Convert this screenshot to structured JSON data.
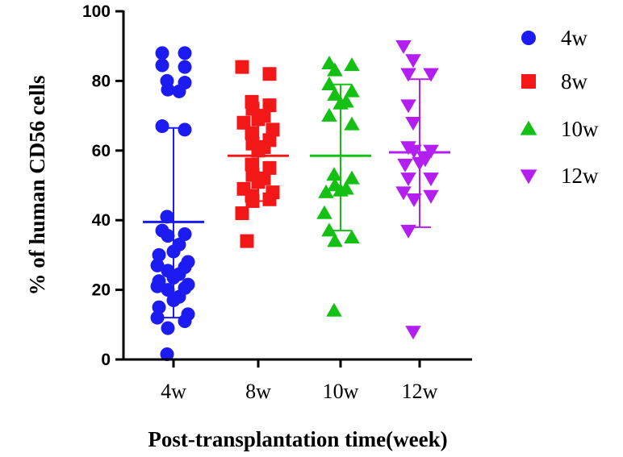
{
  "chart_data": {
    "type": "scatter",
    "title": "",
    "xlabel": "Post-transplantation time(week)",
    "ylabel": "% of human CD56 cells",
    "ylim": [
      0,
      100
    ],
    "yticks": [
      "0",
      "20",
      "40",
      "60",
      "80",
      "100"
    ],
    "categories": [
      "4w",
      "8w",
      "10w",
      "12w"
    ],
    "legend_position": "top-right",
    "series": [
      {
        "name": "4w",
        "marker": "circle",
        "color": "#1b1bf2",
        "mean": 39.5,
        "sd_low": 12,
        "sd_high": 66.5,
        "values": [
          88,
          88,
          84.5,
          84,
          80,
          79.5,
          77.5,
          77,
          67,
          66,
          41,
          37,
          36,
          35.5,
          33,
          31,
          30,
          28,
          27,
          26.5,
          25.5,
          24.5,
          23.5,
          22.5,
          21.5,
          21,
          20.5,
          20,
          18,
          17,
          15,
          13,
          12,
          11,
          9,
          1.5
        ]
      },
      {
        "name": "8w",
        "marker": "square",
        "color": "#f21818",
        "mean": 58.5,
        "sd_low": 45.5,
        "sd_high": 71.5,
        "values": [
          84,
          82,
          74,
          73,
          72,
          70,
          69,
          68,
          66,
          65,
          63,
          62,
          61,
          60,
          56,
          55,
          53,
          52,
          51,
          49,
          48,
          47,
          46,
          45.5,
          42,
          34
        ]
      },
      {
        "name": "10w",
        "marker": "triangle-up",
        "color": "#15c015",
        "mean": 58.5,
        "sd_low": 37,
        "sd_high": 79,
        "values": [
          85,
          84.5,
          83,
          79,
          77,
          76,
          74,
          73.5,
          70,
          67.5,
          53,
          52,
          50,
          49,
          48.5,
          48,
          42,
          37,
          35,
          34,
          14
        ]
      },
      {
        "name": "12w",
        "marker": "triangle-down",
        "color": "#b31ff0",
        "mean": 59.5,
        "sd_low": 38,
        "sd_high": 80.5,
        "values": [
          90,
          86,
          82,
          82,
          73,
          68,
          61,
          60,
          60,
          57.5,
          56.5,
          56,
          52,
          52,
          48,
          47,
          46,
          37,
          8
        ]
      }
    ]
  }
}
